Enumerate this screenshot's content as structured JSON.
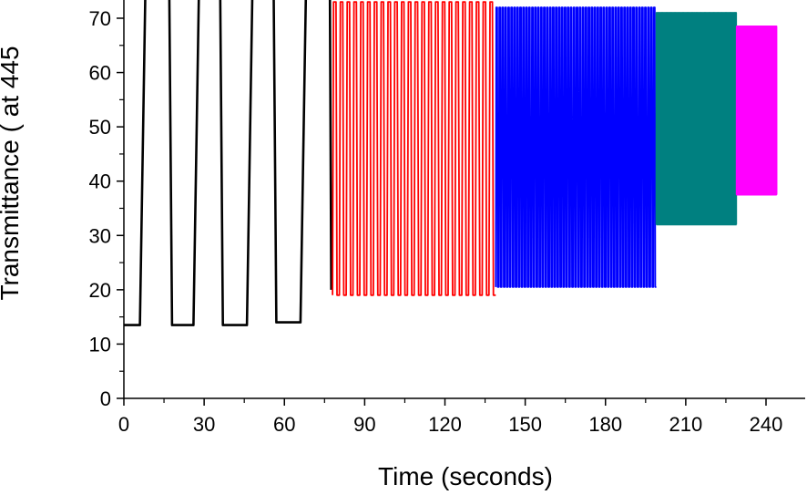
{
  "chart_data": {
    "type": "line",
    "title": "",
    "xlabel": "Time (seconds)",
    "ylabel": "Transmittance ( at 445",
    "xlim": [
      0,
      245
    ],
    "ylim": [
      0,
      74
    ],
    "x_ticks": [
      0,
      30,
      60,
      90,
      120,
      150,
      180,
      210,
      240
    ],
    "y_ticks": [
      0,
      10,
      20,
      30,
      40,
      50,
      60,
      70
    ],
    "grid": false,
    "legend": "none",
    "series": [
      {
        "color": "#000000",
        "pattern": "square_wave",
        "x_start": 0,
        "x_end": 77,
        "low": 13.5,
        "high": 74,
        "segments": [
          {
            "x": 0,
            "y": 13.5
          },
          {
            "x": 6,
            "y": 13.5
          },
          {
            "x": 8,
            "y": 74
          },
          {
            "x": 17,
            "y": 74
          },
          {
            "x": 18,
            "y": 13.5
          },
          {
            "x": 26,
            "y": 13.5
          },
          {
            "x": 28,
            "y": 74
          },
          {
            "x": 36,
            "y": 74
          },
          {
            "x": 37,
            "y": 13.5
          },
          {
            "x": 46,
            "y": 13.5
          },
          {
            "x": 48,
            "y": 74
          },
          {
            "x": 56,
            "y": 74
          },
          {
            "x": 57,
            "y": 14
          },
          {
            "x": 66,
            "y": 14
          },
          {
            "x": 68,
            "y": 74
          },
          {
            "x": 77,
            "y": 74
          },
          {
            "x": 77.5,
            "y": 20
          }
        ]
      },
      {
        "color": "#ff0000",
        "pattern": "oscillation",
        "x_start": 78,
        "x_end": 139,
        "low": 19,
        "high": 73,
        "cycles": 24
      },
      {
        "color": "#0000ff",
        "pattern": "oscillation",
        "x_start": 139,
        "x_end": 199,
        "low": 20.5,
        "high": 72,
        "cycles": 54
      },
      {
        "color": "#008080",
        "pattern": "oscillation",
        "x_start": 199,
        "x_end": 229,
        "low": 32,
        "high": 71,
        "cycles": 90
      },
      {
        "color": "#ff00ff",
        "pattern": "oscillation",
        "x_start": 229,
        "x_end": 244,
        "low": 37.5,
        "high": 68.5,
        "cycles": 80
      }
    ]
  }
}
